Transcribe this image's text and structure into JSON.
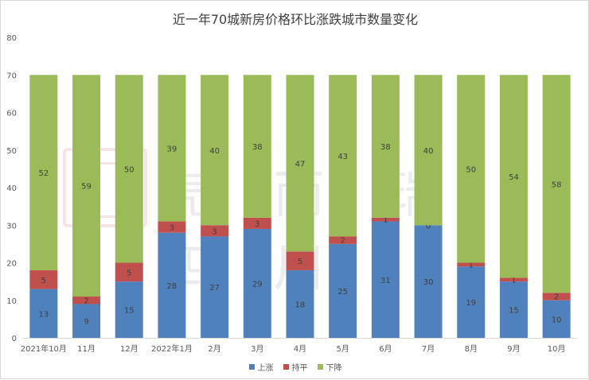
{
  "chart_data": {
    "type": "bar",
    "stacked": true,
    "title": "近一年70城新房价格环比涨跌城市数量变化",
    "categories": [
      "2021年10月",
      "11月",
      "12月",
      "2022年1月",
      "2月",
      "3月",
      "4月",
      "5月",
      "6月",
      "7月",
      "8月",
      "9月",
      "10月"
    ],
    "series": [
      {
        "name": "上涨",
        "color": "#4f81bd",
        "values": [
          13,
          9,
          15,
          28,
          27,
          29,
          18,
          25,
          31,
          30,
          19,
          15,
          10
        ]
      },
      {
        "name": "持平",
        "color": "#c0504d",
        "values": [
          5,
          2,
          5,
          3,
          3,
          3,
          5,
          2,
          1,
          0,
          1,
          1,
          2
        ]
      },
      {
        "name": "下降",
        "color": "#9bbb59",
        "values": [
          52,
          59,
          50,
          39,
          40,
          38,
          47,
          43,
          38,
          40,
          50,
          54,
          58
        ]
      }
    ],
    "ylim": [
      0,
      80
    ],
    "yticks": [
      0,
      10,
      20,
      30,
      40,
      50,
      60,
      70,
      80
    ],
    "grid": false,
    "legend": "bottom"
  }
}
